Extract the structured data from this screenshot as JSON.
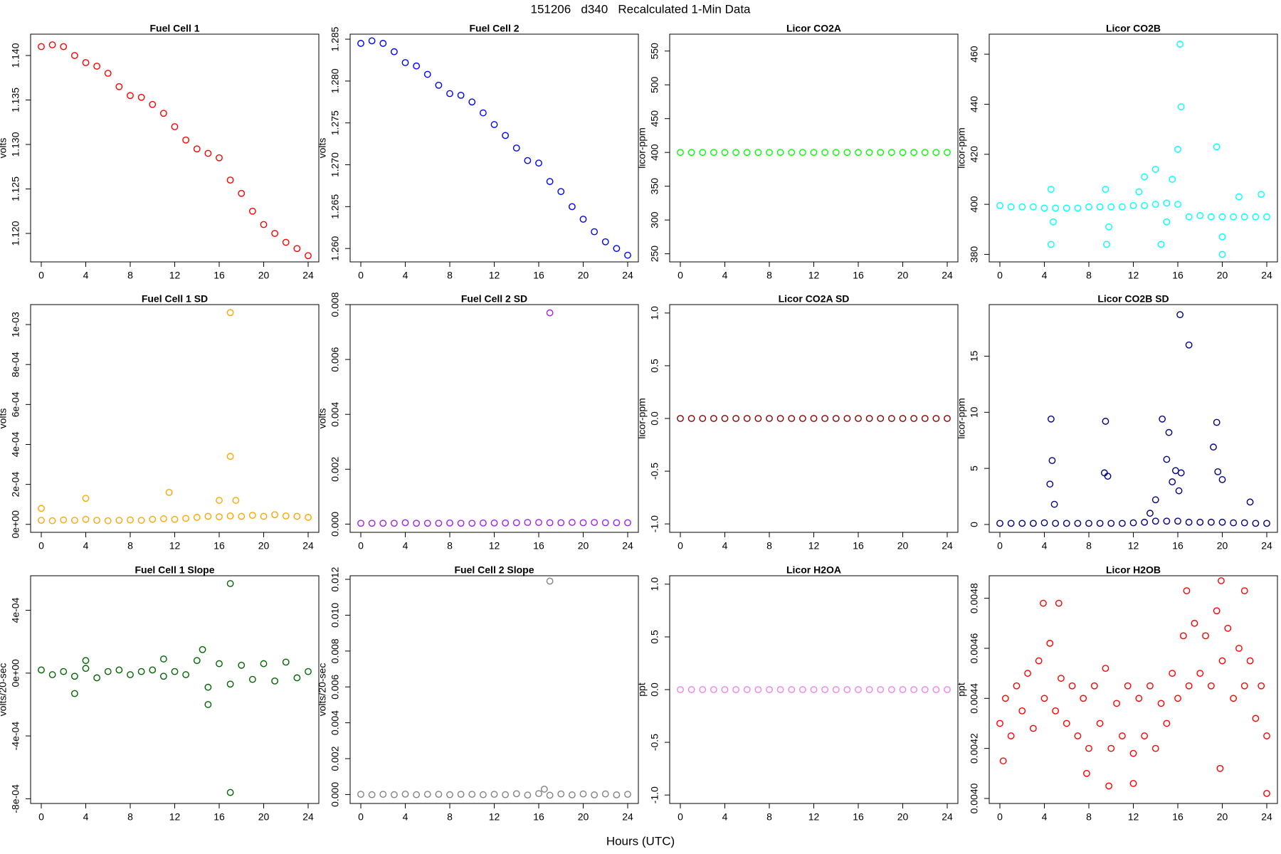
{
  "title": "151206   d340   Recalculated 1-Min Data",
  "xlabel": "Hours (UTC)",
  "chart_data": [
    {
      "type": "scatter",
      "title": "Fuel Cell 1",
      "ylabel": "volts",
      "color": "#ff0000",
      "x": [
        0,
        1,
        2,
        3,
        4,
        5,
        6,
        7,
        8,
        9,
        10,
        11,
        12,
        13,
        14,
        15,
        16,
        17,
        18,
        19,
        20,
        21,
        22,
        23,
        24
      ],
      "values": [
        1.141,
        1.1412,
        1.141,
        1.14,
        1.1392,
        1.1388,
        1.138,
        1.1365,
        1.1355,
        1.1353,
        1.1345,
        1.1335,
        1.132,
        1.1305,
        1.1295,
        1.129,
        1.1285,
        1.126,
        1.1245,
        1.1225,
        1.121,
        1.12,
        1.119,
        1.1183,
        1.1175
      ],
      "xlim": [
        -0.96,
        24.96
      ],
      "xticks": [
        0,
        4,
        8,
        12,
        16,
        20,
        24
      ],
      "ylim": [
        1.1168,
        1.1424
      ],
      "yticks": [
        {
          "value": 1.12,
          "label": "1.120"
        },
        1.125,
        {
          "value": 1.13,
          "label": "1.130"
        },
        1.135,
        {
          "value": 1.14,
          "label": "1.140"
        }
      ]
    },
    {
      "type": "scatter",
      "title": "Fuel Cell 2",
      "ylabel": "volts",
      "color": "#0000ff",
      "x": [
        0,
        1,
        2,
        3,
        4,
        5,
        6,
        7,
        8,
        9,
        10,
        11,
        12,
        13,
        14,
        15,
        16,
        17,
        18,
        19,
        20,
        21,
        22,
        23,
        24
      ],
      "values": [
        1.2845,
        1.2848,
        1.2845,
        1.2835,
        1.2822,
        1.2818,
        1.2808,
        1.2795,
        1.2785,
        1.2783,
        1.2775,
        1.2762,
        1.2748,
        1.2735,
        1.272,
        1.2705,
        1.2702,
        1.268,
        1.2668,
        1.265,
        1.2635,
        1.262,
        1.2608,
        1.26,
        1.2592
      ],
      "xlim": [
        -0.96,
        24.96
      ],
      "xticks": [
        0,
        4,
        8,
        12,
        16,
        20,
        24
      ],
      "ylim": [
        1.2584,
        1.2856
      ],
      "yticks": [
        {
          "value": 1.26,
          "label": "1.260"
        },
        1.265,
        {
          "value": 1.27,
          "label": "1.270"
        },
        1.275,
        {
          "value": 1.28,
          "label": "1.280"
        },
        1.285
      ]
    },
    {
      "type": "scatter",
      "title": "Licor CO2A",
      "ylabel": "licor-ppm",
      "color": "#00ff00",
      "x": [
        0,
        1,
        2,
        3,
        4,
        5,
        6,
        7,
        8,
        9,
        10,
        11,
        12,
        13,
        14,
        15,
        16,
        17,
        18,
        19,
        20,
        21,
        22,
        23,
        24
      ],
      "values": [
        400,
        400,
        400,
        400,
        400,
        400,
        400,
        400,
        400,
        400,
        400,
        400,
        400,
        400,
        400,
        400,
        400,
        400,
        400,
        400,
        400,
        400,
        400,
        400,
        400
      ],
      "xlim": [
        -0.96,
        24.96
      ],
      "xticks": [
        0,
        4,
        8,
        12,
        16,
        20,
        24
      ],
      "ylim": [
        238,
        575
      ],
      "yticks": [
        250,
        300,
        350,
        400,
        450,
        500,
        550
      ]
    },
    {
      "type": "scatter",
      "title": "Licor CO2B",
      "ylabel": "licor-ppm",
      "color": "#00ffff",
      "x": [
        0,
        1,
        2,
        3,
        4,
        5,
        6,
        7,
        8,
        9,
        10,
        11,
        12,
        13,
        14,
        15,
        16,
        17,
        18,
        19,
        20,
        21,
        22,
        23,
        24,
        4.6,
        4.6,
        4.8,
        9.5,
        9.6,
        9.8,
        12.5,
        13,
        14,
        14.5,
        15,
        15.5,
        16.2,
        16.3,
        16,
        19.5,
        20,
        20,
        21.5,
        23.5
      ],
      "values": [
        399.5,
        399,
        399,
        399,
        398.5,
        398.5,
        398.5,
        398.5,
        399,
        399,
        399,
        399,
        399.5,
        399.5,
        400,
        400.5,
        400,
        395,
        395.5,
        395,
        395,
        395,
        395,
        395,
        395,
        406,
        384,
        393,
        406,
        384,
        391,
        405,
        411,
        414,
        384,
        393,
        410,
        464,
        439,
        422,
        423,
        380,
        387,
        403,
        404
      ],
      "xlim": [
        -0.96,
        24.96
      ],
      "xticks": [
        0,
        4,
        8,
        12,
        16,
        20,
        24
      ],
      "ylim": [
        377,
        468
      ],
      "yticks": [
        380,
        400,
        420,
        440,
        460
      ]
    },
    {
      "type": "scatter",
      "title": "Fuel Cell 1 SD",
      "ylabel": "volts",
      "color": "#ffa500",
      "x": [
        0,
        1,
        2,
        3,
        4,
        5,
        6,
        7,
        8,
        9,
        10,
        11,
        12,
        13,
        14,
        15,
        16,
        17,
        18,
        19,
        20,
        21,
        22,
        23,
        24,
        17,
        17,
        0,
        4,
        11.5,
        16,
        17.5
      ],
      "values": [
        2e-05,
        1.8e-05,
        2.2e-05,
        2e-05,
        2.5e-05,
        2e-05,
        1.8e-05,
        2e-05,
        2.2e-05,
        2e-05,
        2.5e-05,
        2.8e-05,
        2.5e-05,
        3e-05,
        3.5e-05,
        4e-05,
        3.8e-05,
        4.2e-05,
        4e-05,
        4.5e-05,
        4e-05,
        4.8e-05,
        4.2e-05,
        4e-05,
        3.5e-05,
        0.00106,
        0.00034,
        8e-05,
        0.00013,
        0.00016,
        0.00012,
        0.00012
      ],
      "xlim": [
        -0.96,
        24.96
      ],
      "xticks": [
        0,
        4,
        8,
        12,
        16,
        20,
        24
      ],
      "ylim": [
        -4e-05,
        0.0011
      ],
      "yticks": [
        {
          "value": 0,
          "label": "0e+00"
        },
        {
          "value": 0.0002,
          "label": "2e-04"
        },
        {
          "value": 0.0004,
          "label": "4e-04"
        },
        {
          "value": 0.0006,
          "label": "6e-04"
        },
        {
          "value": 0.0008,
          "label": "8e-04"
        },
        {
          "value": 0.001,
          "label": "1e-03"
        }
      ]
    },
    {
      "type": "scatter",
      "title": "Fuel Cell 2 SD",
      "ylabel": "volts",
      "color": "#a020f0",
      "x": [
        0,
        1,
        2,
        3,
        4,
        5,
        6,
        7,
        8,
        9,
        10,
        11,
        12,
        13,
        14,
        15,
        16,
        17,
        18,
        19,
        20,
        21,
        22,
        23,
        24,
        17
      ],
      "values": [
        3e-05,
        3e-05,
        3e-05,
        3e-05,
        5e-05,
        3e-05,
        3e-05,
        3e-05,
        4e-05,
        3e-05,
        3e-05,
        4e-05,
        4e-05,
        4e-05,
        5e-05,
        6e-05,
        6e-05,
        5e-05,
        5e-05,
        6e-05,
        5e-05,
        6e-05,
        5e-05,
        5e-05,
        5e-05,
        0.0077
      ],
      "xlim": [
        -0.96,
        24.96
      ],
      "xticks": [
        0,
        4,
        8,
        12,
        16,
        20,
        24
      ],
      "ylim": [
        -0.0003,
        0.008
      ],
      "yticks": [
        {
          "value": 0,
          "label": "0.000"
        },
        0.002,
        0.004,
        0.006,
        0.008
      ]
    },
    {
      "type": "scatter",
      "title": "Licor CO2A SD",
      "ylabel": "licor-ppm",
      "color": "#8b0000",
      "x": [
        0,
        1,
        2,
        3,
        4,
        5,
        6,
        7,
        8,
        9,
        10,
        11,
        12,
        13,
        14,
        15,
        16,
        17,
        18,
        19,
        20,
        21,
        22,
        23,
        24
      ],
      "values": [
        0,
        0,
        0,
        0,
        0,
        0,
        0,
        0,
        0,
        0,
        0,
        0,
        0,
        0,
        0,
        0,
        0,
        0,
        0,
        0,
        0,
        0,
        0,
        0,
        0
      ],
      "xlim": [
        -0.96,
        24.96
      ],
      "xticks": [
        0,
        4,
        8,
        12,
        16,
        20,
        24
      ],
      "ylim": [
        -1.08,
        1.08
      ],
      "yticks": [
        {
          "value": -1,
          "label": "-1.0"
        },
        -0.5,
        {
          "value": 0,
          "label": "0.0"
        },
        0.5,
        {
          "value": 1,
          "label": "1.0"
        }
      ]
    },
    {
      "type": "scatter",
      "title": "Licor CO2B SD",
      "ylabel": "licor-ppm",
      "color": "#000080",
      "x": [
        0,
        1,
        2,
        3,
        4,
        5,
        6,
        7,
        8,
        9,
        10,
        11,
        12,
        13,
        14,
        15,
        16,
        17,
        18,
        19,
        20,
        21,
        22,
        23,
        24,
        4.6,
        4.7,
        4.5,
        4.9,
        9.5,
        9.4,
        9.7,
        14.6,
        15.2,
        15,
        15.8,
        16.2,
        16.1,
        16.3,
        17,
        19.5,
        19.2,
        19.6,
        20,
        22.5,
        14,
        13.5,
        15.5
      ],
      "values": [
        0.1,
        0.1,
        0.1,
        0.1,
        0.15,
        0.1,
        0.1,
        0.1,
        0.1,
        0.1,
        0.1,
        0.1,
        0.15,
        0.2,
        0.3,
        0.3,
        0.3,
        0.2,
        0.2,
        0.2,
        0.2,
        0.15,
        0.15,
        0.1,
        0.1,
        9.4,
        5.7,
        3.6,
        1.8,
        9.2,
        4.6,
        4.3,
        9.4,
        8.2,
        5.8,
        4.8,
        18.7,
        3,
        4.6,
        16,
        9.1,
        6.9,
        4.7,
        4,
        2,
        2.2,
        1,
        3.8
      ],
      "xlim": [
        -0.96,
        24.96
      ],
      "xticks": [
        0,
        4,
        8,
        12,
        16,
        20,
        24
      ],
      "ylim": [
        -0.7,
        19.6
      ],
      "yticks": [
        0,
        5,
        10,
        15
      ]
    },
    {
      "type": "scatter",
      "title": "Fuel Cell 1 Slope",
      "ylabel": "volts/20-sec",
      "color": "#006400",
      "x": [
        0,
        1,
        2,
        3,
        4,
        5,
        6,
        7,
        8,
        9,
        10,
        11,
        12,
        13,
        14,
        15,
        16,
        17,
        18,
        19,
        20,
        21,
        22,
        23,
        24,
        17,
        17,
        14.5,
        15,
        3,
        4,
        11
      ],
      "values": [
        2e-05,
        -1e-05,
        1e-05,
        -2e-05,
        3e-05,
        -3e-05,
        1e-05,
        2e-05,
        -1e-05,
        1e-05,
        2e-05,
        -2e-05,
        1e-05,
        -1e-05,
        8e-05,
        -9e-05,
        6e-05,
        -7e-05,
        5e-05,
        -4e-05,
        6e-05,
        -5e-05,
        7e-05,
        -3e-05,
        1e-05,
        0.00057,
        -0.00076,
        0.00015,
        -0.0002,
        -0.00013,
        8e-05,
        9e-05
      ],
      "xlim": [
        -0.96,
        24.96
      ],
      "xticks": [
        0,
        4,
        8,
        12,
        16,
        20,
        24
      ],
      "ylim": [
        -0.00083,
        0.00062
      ],
      "yticks": [
        {
          "value": -0.0008,
          "label": "-8e-04"
        },
        {
          "value": -0.0004,
          "label": "-4e-04"
        },
        {
          "value": 0,
          "label": "0e+00"
        },
        {
          "value": 0.0004,
          "label": "4e-04"
        }
      ]
    },
    {
      "type": "scatter",
      "title": "Fuel Cell 2 Slope",
      "ylabel": "volts/20-sec",
      "color": "#808080",
      "x": [
        0,
        1,
        2,
        3,
        4,
        5,
        6,
        7,
        8,
        9,
        10,
        11,
        12,
        13,
        14,
        15,
        16,
        17,
        18,
        19,
        20,
        21,
        22,
        23,
        24,
        17,
        16.5
      ],
      "values": [
        1e-05,
        -1e-05,
        1e-05,
        -1e-05,
        2e-05,
        -1e-05,
        1e-05,
        1e-05,
        -1e-05,
        1e-05,
        1e-05,
        -1e-05,
        1e-05,
        -1e-05,
        4e-05,
        -3e-05,
        5e-05,
        -4e-05,
        3e-05,
        -2e-05,
        3e-05,
        -2e-05,
        3e-05,
        -2e-05,
        1e-05,
        0.0119,
        0.0003
      ],
      "xlim": [
        -0.96,
        24.96
      ],
      "xticks": [
        0,
        4,
        8,
        12,
        16,
        20,
        24
      ],
      "ylim": [
        -0.0005,
        0.0122
      ],
      "yticks": [
        {
          "value": 0,
          "label": "0.000"
        },
        0.002,
        0.004,
        0.006,
        0.008,
        {
          "value": 0.01,
          "label": "0.010"
        },
        0.012
      ]
    },
    {
      "type": "scatter",
      "title": "Licor H2OA",
      "ylabel": "ppt",
      "color": "#ee82ee",
      "x": [
        0,
        1,
        2,
        3,
        4,
        5,
        6,
        7,
        8,
        9,
        10,
        11,
        12,
        13,
        14,
        15,
        16,
        17,
        18,
        19,
        20,
        21,
        22,
        23,
        24
      ],
      "values": [
        0,
        0,
        0,
        0,
        0,
        0,
        0,
        0,
        0,
        0,
        0,
        0,
        0,
        0,
        0,
        0,
        0,
        0,
        0,
        0,
        0,
        0,
        0,
        0,
        0
      ],
      "xlim": [
        -0.96,
        24.96
      ],
      "xticks": [
        0,
        4,
        8,
        12,
        16,
        20,
        24
      ],
      "ylim": [
        -1.08,
        1.08
      ],
      "yticks": [
        {
          "value": -1,
          "label": "-1.0"
        },
        -0.5,
        {
          "value": 0,
          "label": "0.0"
        },
        0.5,
        {
          "value": 1,
          "label": "1.0"
        }
      ]
    },
    {
      "type": "scatter",
      "title": "Licor H2OB",
      "ylabel": "ppt",
      "color": "#ff0000",
      "x": [
        0,
        0.5,
        1,
        1.5,
        2,
        2.5,
        3,
        3.5,
        4,
        4.5,
        5,
        5.5,
        6,
        6.5,
        7,
        7.5,
        8,
        8.5,
        9,
        9.5,
        10,
        10.5,
        11,
        11.5,
        12,
        12.5,
        13,
        13.5,
        14,
        14.5,
        15,
        15.5,
        16,
        16.5,
        17,
        17.5,
        18,
        18.5,
        19,
        19.5,
        20,
        20.5,
        21,
        21.5,
        22,
        22.5,
        23,
        23.5,
        24,
        3.9,
        5.3,
        9.8,
        12,
        16.8,
        19.9,
        19.8,
        22,
        24,
        0.3,
        7.8
      ],
      "values": [
        0.0043,
        0.0044,
        0.00425,
        0.00445,
        0.00435,
        0.0045,
        0.00428,
        0.00455,
        0.0044,
        0.00462,
        0.00435,
        0.00448,
        0.0043,
        0.00445,
        0.00425,
        0.0044,
        0.0042,
        0.00445,
        0.0043,
        0.00452,
        0.0042,
        0.00438,
        0.00425,
        0.00445,
        0.00418,
        0.0044,
        0.00425,
        0.00445,
        0.0042,
        0.00438,
        0.0043,
        0.0045,
        0.0044,
        0.00465,
        0.00445,
        0.0047,
        0.0045,
        0.00465,
        0.00445,
        0.00475,
        0.00455,
        0.00468,
        0.0044,
        0.0046,
        0.00445,
        0.00455,
        0.00432,
        0.00445,
        0.00425,
        0.00478,
        0.00478,
        0.00405,
        0.00406,
        0.00483,
        0.00487,
        0.00412,
        0.00483,
        0.00402,
        0.00415,
        0.0041
      ],
      "xlim": [
        -0.96,
        24.96
      ],
      "xticks": [
        0,
        4,
        8,
        12,
        16,
        20,
        24
      ],
      "ylim": [
        0.00398,
        0.00489
      ],
      "yticks": [
        {
          "value": 0.004,
          "label": "0.0040"
        },
        {
          "value": 0.0042,
          "label": "0.0042"
        },
        {
          "value": 0.0044,
          "label": "0.0044"
        },
        {
          "value": 0.0046,
          "label": "0.0046"
        },
        {
          "value": 0.0048,
          "label": "0.0048"
        }
      ]
    }
  ]
}
